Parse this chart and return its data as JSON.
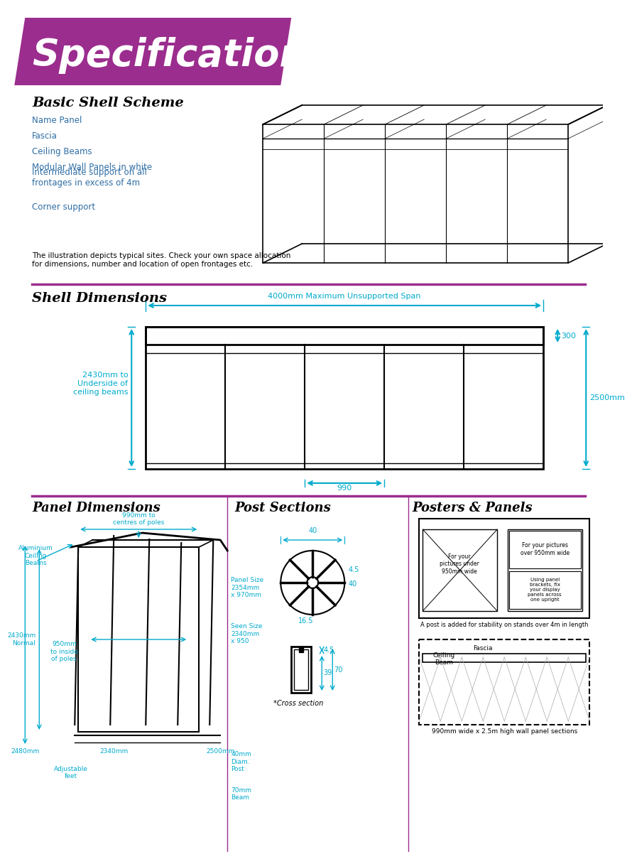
{
  "title": "Specifications",
  "title_bg_color": "#9B2D8E",
  "title_text_color": "#FFFFFF",
  "section1_title": "Basic Shell Scheme",
  "section1_items": [
    "Name Panel",
    "Fascia",
    "Ceiling Beams",
    "Modular Wall Panels in white",
    "Intermediate support on all\nfrontages in excess of 4m",
    "Corner support"
  ],
  "section1_note": "The illustration depicts typical sites. Check your own space allocation\nfor dimensions, number and location of open frontages etc.",
  "section2_title": "Shell Dimensions",
  "dim_4000": "4000mm Maximum Unsupported Span",
  "dim_300": "300",
  "dim_2500": "2500mm",
  "dim_2430": "2430mm to\nUnderside of\nceiling beams",
  "dim_990": "990",
  "section3_title": "Panel Dimensions",
  "section4_title": "Post Sections",
  "section5_title": "Posters & Panels",
  "panel_labels": [
    "Aluminium\nCeiling\nBeams",
    "990mm to\ncentres of poles",
    "Panel Size\n2354mm\nx 970mm",
    "Seen Size\n2340mm\nx 950",
    "950mm\nto inside\nof poles",
    "2430mm\nNormal",
    "2480mm",
    "2340mm",
    "2500mm",
    "40mm\nDiam.\nPost",
    "70mm\nBeam",
    "Adjustable\nfeet"
  ],
  "post_labels": [
    "40",
    "4.5",
    "40",
    "16.5",
    "4.5",
    "39",
    "70"
  ],
  "item_color": "#2E6DA4",
  "dim_color": "#00AACC",
  "arrow_color": "#00AACC",
  "purple_line": "#9B2D8E",
  "black": "#000000",
  "white": "#FFFFFF",
  "bg": "#FFFFFF"
}
